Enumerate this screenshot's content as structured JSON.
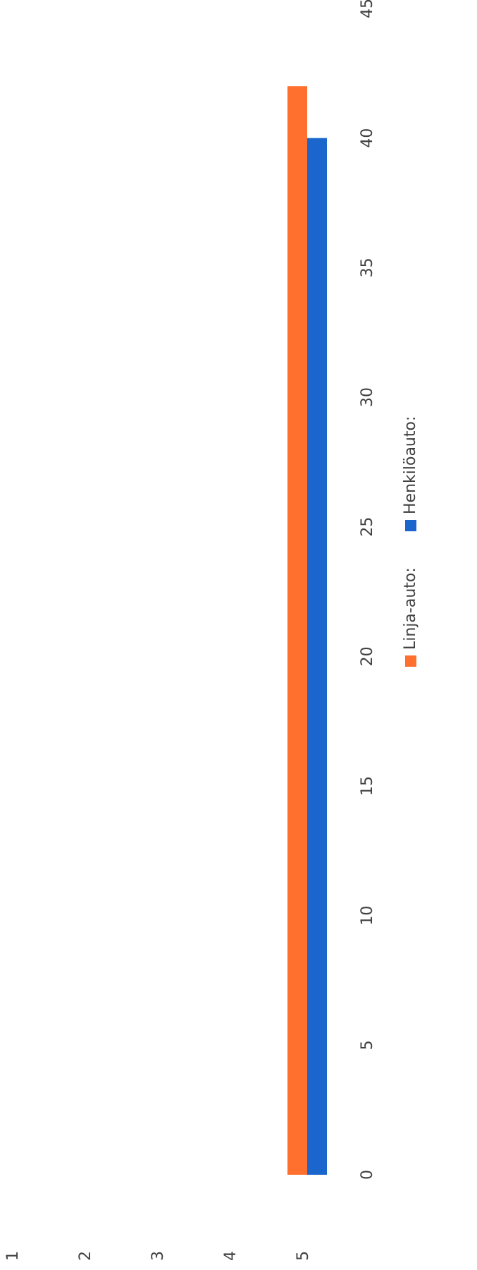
{
  "chart_data": {
    "type": "bar",
    "orientation": "horizontal",
    "rotated": "90deg clockwise",
    "categories": [
      "1",
      "2",
      "3",
      "4",
      "5"
    ],
    "series": [
      {
        "name": "Linja-auto:",
        "color": "#ff6f2e",
        "values": [
          null,
          null,
          null,
          null,
          42
        ]
      },
      {
        "name": "Henkilöauto:",
        "color": "#1a66cc",
        "values": [
          null,
          null,
          null,
          null,
          40
        ]
      }
    ],
    "x_ticks": [
      "0",
      "5",
      "10",
      "15",
      "20",
      "25",
      "30",
      "35",
      "40",
      "45"
    ],
    "xlim": [
      0,
      45
    ],
    "title": "",
    "xlabel": "",
    "ylabel": "",
    "grid": false,
    "legend_position": "bottom"
  }
}
